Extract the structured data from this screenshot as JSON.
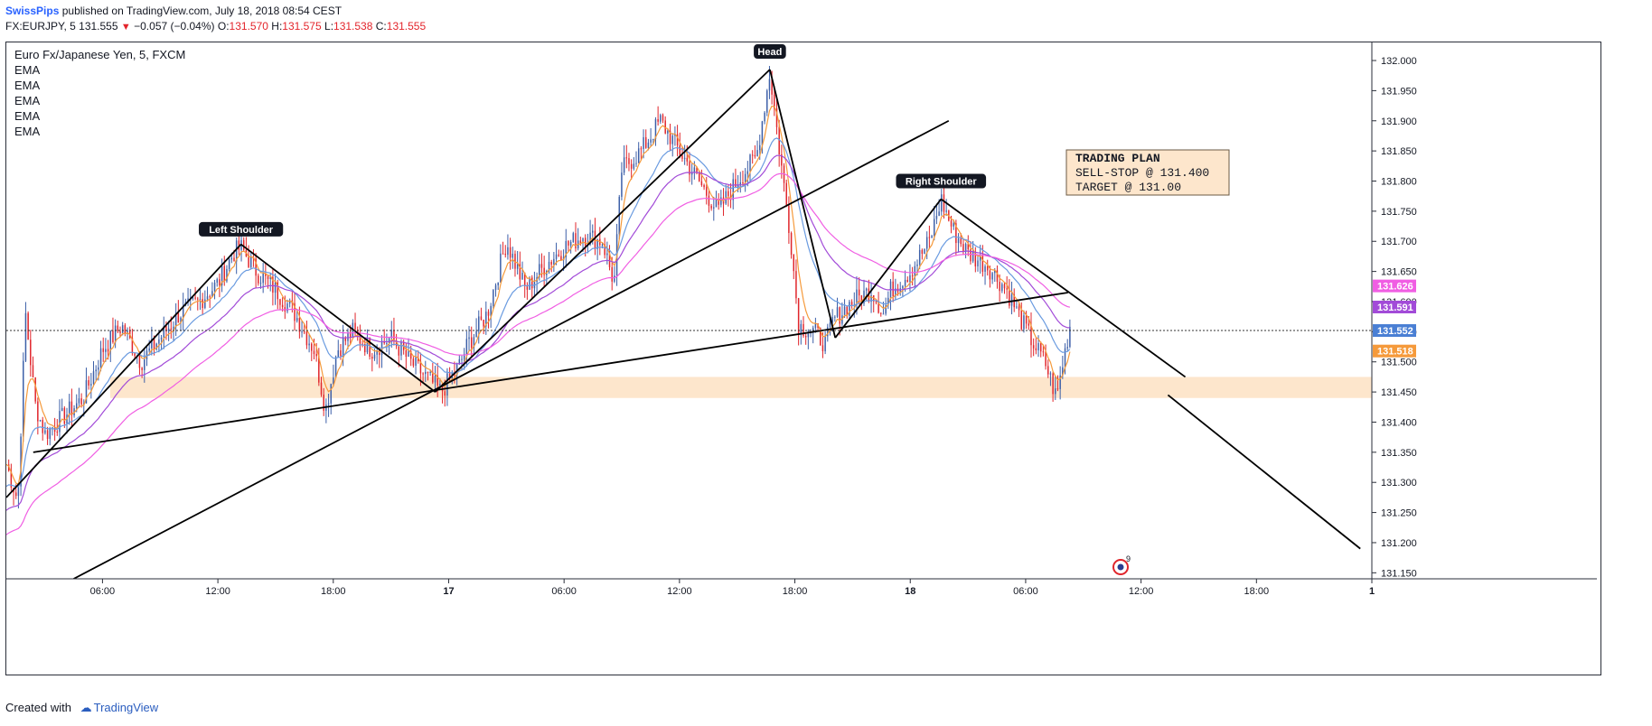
{
  "header": {
    "author": "SwissPips",
    "published": "published on TradingView.com, July 18, 2018 08:54 CEST",
    "symbol_prefix": "FX:EURJPY, 5",
    "last": "131.555",
    "arrow": "▼",
    "change": "−0.057 (−0.04%)",
    "o_label": "O:",
    "o_val": "131.570",
    "h_label": "H:",
    "h_val": "131.575",
    "l_label": "L:",
    "l_val": "131.538",
    "c_label": "C:",
    "c_val": "131.555"
  },
  "legend": {
    "title": "Euro Fx/Japanese Yen, 5, FXCM",
    "indicators": [
      "EMA",
      "EMA",
      "EMA",
      "EMA",
      "EMA"
    ]
  },
  "footer": {
    "created_with": "Created with",
    "brand": "TradingView"
  },
  "colors": {
    "up": "#3c5fa8",
    "down": "#e0252b",
    "ema_fast": "#f59a3b",
    "ema_mid": "#6a9be0",
    "ema_slow1": "#a24bd8",
    "ema_slow2": "#f05ee3",
    "zone": "#fde6cc",
    "line": "#000000"
  },
  "chart_data": {
    "type": "candlestick",
    "title": "Euro Fx/Japanese Yen, 5, FXCM",
    "ylim": [
      131.14,
      132.03
    ],
    "y_ticks": [
      "131.150",
      "131.200",
      "131.250",
      "131.300",
      "131.350",
      "131.400",
      "131.450",
      "131.500",
      "131.550",
      "131.600",
      "131.650",
      "131.700",
      "131.750",
      "131.800",
      "131.850",
      "131.900",
      "131.950",
      "132.000"
    ],
    "x_ticks": [
      {
        "label": "06:00",
        "t": 6
      },
      {
        "label": "12:00",
        "t": 12
      },
      {
        "label": "18:00",
        "t": 18
      },
      {
        "label": "17",
        "t": 24
      },
      {
        "label": "06:00",
        "t": 30
      },
      {
        "label": "12:00",
        "t": 36
      },
      {
        "label": "18:00",
        "t": 42
      },
      {
        "label": "18",
        "t": 48
      },
      {
        "label": "06:00",
        "t": 54
      },
      {
        "label": "12:00",
        "t": 60
      },
      {
        "label": "18:00",
        "t": 66
      },
      {
        "label": "1",
        "t": 72
      }
    ],
    "t_range": [
      1,
      72
    ],
    "price_path": [
      [
        1,
        131.33
      ],
      [
        1.6,
        131.27
      ],
      [
        2,
        131.58
      ],
      [
        2.5,
        131.43
      ],
      [
        3,
        131.38
      ],
      [
        4,
        131.41
      ],
      [
        5,
        131.44
      ],
      [
        6,
        131.52
      ],
      [
        7,
        131.56
      ],
      [
        8,
        131.5
      ],
      [
        9,
        131.54
      ],
      [
        10,
        131.58
      ],
      [
        11,
        131.6
      ],
      [
        12,
        131.63
      ],
      [
        12.8,
        131.68
      ],
      [
        13.2,
        131.69
      ],
      [
        14,
        131.65
      ],
      [
        15,
        131.62
      ],
      [
        16,
        131.58
      ],
      [
        17,
        131.52
      ],
      [
        17.6,
        131.42
      ],
      [
        18.2,
        131.52
      ],
      [
        19,
        131.55
      ],
      [
        20,
        131.52
      ],
      [
        21,
        131.54
      ],
      [
        22,
        131.5
      ],
      [
        23,
        131.47
      ],
      [
        23.6,
        131.45
      ],
      [
        24.5,
        131.49
      ],
      [
        25,
        131.53
      ],
      [
        26,
        131.58
      ],
      [
        27,
        131.7
      ],
      [
        28,
        131.62
      ],
      [
        29,
        131.66
      ],
      [
        30,
        131.69
      ],
      [
        31,
        131.71
      ],
      [
        32,
        131.7
      ],
      [
        32.6,
        131.63
      ],
      [
        33,
        131.82
      ],
      [
        34,
        131.85
      ],
      [
        35,
        131.9
      ],
      [
        36,
        131.85
      ],
      [
        37,
        131.8
      ],
      [
        38,
        131.75
      ],
      [
        39,
        131.8
      ],
      [
        40,
        131.84
      ],
      [
        40.7,
        131.98
      ],
      [
        41.2,
        131.85
      ],
      [
        41.8,
        131.7
      ],
      [
        42.2,
        131.56
      ],
      [
        43,
        131.55
      ],
      [
        43.6,
        131.53
      ],
      [
        44,
        131.57
      ],
      [
        45,
        131.6
      ],
      [
        46,
        131.62
      ],
      [
        46.6,
        131.58
      ],
      [
        47,
        131.62
      ],
      [
        48,
        131.65
      ],
      [
        49,
        131.7
      ],
      [
        49.6,
        131.77
      ],
      [
        50.2,
        131.72
      ],
      [
        51,
        131.68
      ],
      [
        52,
        131.66
      ],
      [
        53,
        131.62
      ],
      [
        53.6,
        131.58
      ],
      [
        54.4,
        131.53
      ],
      [
        55,
        131.5
      ],
      [
        55.6,
        131.44
      ],
      [
        56,
        131.51
      ],
      [
        56.3,
        131.56
      ]
    ],
    "emas": [
      {
        "name": "EMA",
        "color": "#f59a3b",
        "period": 6
      },
      {
        "name": "EMA",
        "color": "#6a9be0",
        "period": 20
      },
      {
        "name": "EMA",
        "color": "#a24bd8",
        "period": 40
      },
      {
        "name": "EMA",
        "color": "#f05ee3",
        "period": 70
      }
    ],
    "annotations": [
      {
        "label": "Left Shoulder",
        "t": 13.2,
        "price": 131.69
      },
      {
        "label": "Head",
        "t": 40.7,
        "price": 131.985
      },
      {
        "label": "Right Shoulder",
        "t": 49.6,
        "price": 131.77
      }
    ],
    "trend_lines": [
      {
        "from": [
          1,
          131.275
        ],
        "to": [
          13.2,
          131.695
        ]
      },
      {
        "from": [
          13.2,
          131.695
        ],
        "to": [
          23.3,
          131.45
        ]
      },
      {
        "from": [
          23.3,
          131.45
        ],
        "to": [
          40.7,
          131.985
        ]
      },
      {
        "from": [
          40.7,
          131.985
        ],
        "to": [
          44.1,
          131.54
        ]
      },
      {
        "from": [
          44.1,
          131.54
        ],
        "to": [
          49.6,
          131.77
        ]
      },
      {
        "from": [
          49.6,
          131.77
        ],
        "to": [
          62.3,
          131.475
        ]
      },
      {
        "from": [
          61.4,
          131.445
        ],
        "to": [
          71.4,
          131.19
        ]
      },
      {
        "from": [
          2.4,
          131.35
        ],
        "to": [
          56.2,
          131.615
        ]
      },
      {
        "from": [
          4.5,
          131.14
        ],
        "to": [
          50,
          131.9
        ]
      }
    ],
    "zone": {
      "from_t": 6.4,
      "to_t": 72,
      "low": 131.44,
      "high": 131.475
    },
    "current_price": "131.552",
    "price_tags": [
      {
        "value": "131.626",
        "price": 131.626,
        "color": "#f05ee3"
      },
      {
        "value": "131.591",
        "price": 131.591,
        "color": "#a24bd8"
      },
      {
        "value": "131.552",
        "price": 131.552,
        "color": "#4a7fd4"
      },
      {
        "value": "131.518",
        "price": 131.518,
        "color": "#f59a3b"
      }
    ],
    "trading_plan": {
      "title": "TRADING PLAN",
      "line1": "SELL-STOP @ 131.400",
      "line2": "TARGET @ 131.00"
    },
    "event_badge": "9"
  }
}
